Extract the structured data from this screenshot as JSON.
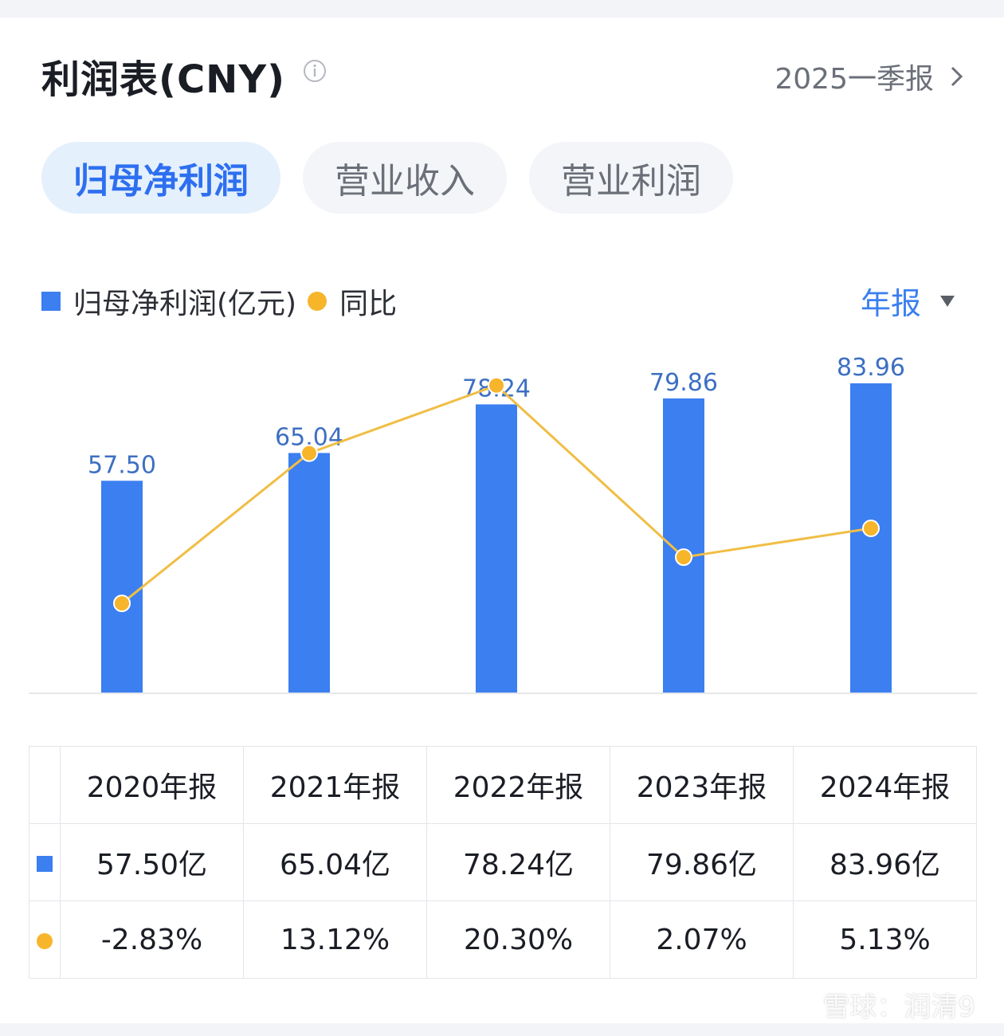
{
  "header": {
    "title": "利润表(CNY)",
    "report": "2025一季报"
  },
  "tabs": [
    {
      "label": "归母净利润",
      "active": true
    },
    {
      "label": "营业收入",
      "active": false
    },
    {
      "label": "营业利润",
      "active": false
    }
  ],
  "legend": {
    "bar_label": "归母净利润(亿元)",
    "line_label": "同比"
  },
  "period_select": "年报",
  "colors": {
    "bar": "#3b7ff0",
    "line": "#f0be45",
    "positive": "#e0494b",
    "negative": "#2f9e6a"
  },
  "chart_data": {
    "type": "bar",
    "categories": [
      "2020年报",
      "2021年报",
      "2022年报",
      "2023年报",
      "2024年报"
    ],
    "series": [
      {
        "name": "归母净利润(亿元)",
        "type": "bar",
        "values": [
          57.5,
          65.04,
          78.24,
          79.86,
          83.96
        ],
        "labels": [
          "57.50",
          "65.04",
          "78.24",
          "79.86",
          "83.96"
        ]
      },
      {
        "name": "同比",
        "type": "line",
        "values": [
          -2.83,
          13.12,
          20.3,
          2.07,
          5.13
        ]
      }
    ],
    "ylim": [
      0,
      83.96
    ],
    "grid": false
  },
  "table": {
    "headers": [
      "2020年报",
      "2021年报",
      "2022年报",
      "2023年报",
      "2024年报"
    ],
    "values": [
      "57.50亿",
      "65.04亿",
      "78.24亿",
      "79.86亿",
      "83.96亿"
    ],
    "growth": [
      "-2.83%",
      "13.12%",
      "20.30%",
      "2.07%",
      "5.13%"
    ]
  },
  "watermark": "雪球：润清9"
}
